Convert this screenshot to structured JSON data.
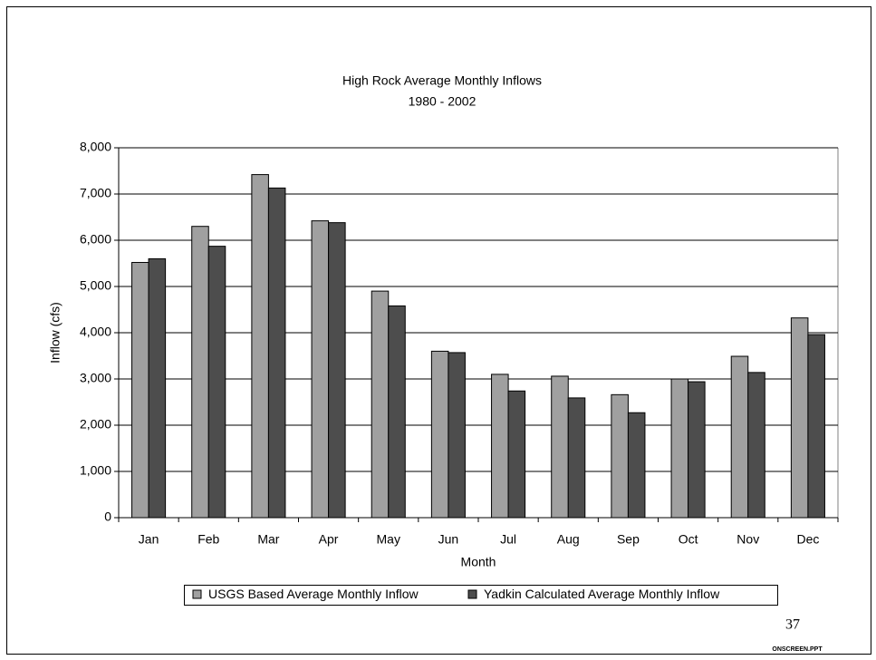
{
  "chart_data": {
    "type": "bar",
    "title": "High Rock Average Monthly Inflows",
    "subtitle": "1980 - 2002",
    "x_label": "Month",
    "y_label": "Inflow (cfs)",
    "categories": [
      "Jan",
      "Feb",
      "Mar",
      "Apr",
      "May",
      "Jun",
      "Jul",
      "Aug",
      "Sep",
      "Oct",
      "Nov",
      "Dec"
    ],
    "series": [
      {
        "name": "USGS Based Average Monthly Inflow",
        "color": "#a0a0a0",
        "values": [
          5520,
          6300,
          7420,
          6420,
          4900,
          3600,
          3100,
          3060,
          2660,
          3000,
          3490,
          4320
        ]
      },
      {
        "name": "Yadkin Calculated Average Monthly Inflow",
        "color": "#4d4d4d",
        "values": [
          5600,
          5870,
          7130,
          6380,
          4580,
          3570,
          2740,
          2590,
          2270,
          2940,
          3140,
          3960
        ]
      }
    ],
    "ylim": [
      0,
      8000
    ],
    "yticks": [
      0,
      {
        "value": 1000,
        "label": "1,000"
      },
      {
        "value": 2000,
        "label": "2,000"
      },
      {
        "value": 3000,
        "label": "3,000"
      },
      {
        "value": 4000,
        "label": "4,000"
      },
      {
        "value": 5000,
        "label": "5,000"
      },
      {
        "value": 6000,
        "label": "6,000"
      },
      {
        "value": 7000,
        "label": "7,000"
      },
      {
        "value": 8000,
        "label": "8,000"
      }
    ],
    "grid": true,
    "legend": "bottom"
  },
  "slide": {
    "page_number": "37",
    "footer": "ONSCREEN.PPT"
  }
}
